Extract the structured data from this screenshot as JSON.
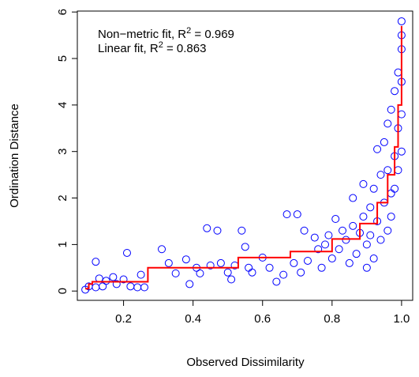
{
  "chart_data": {
    "type": "scatter",
    "x_label": "Observed Dissimilarity",
    "y_label": "Ordination Distance",
    "annotations": [
      [
        "Non−metric fit, R",
        "2",
        " = 0.969"
      ],
      [
        "Linear fit, R",
        "2",
        " = 0.863"
      ]
    ],
    "xlim": [
      0.067,
      1.032
    ],
    "ylim": [
      -0.2,
      6.02
    ],
    "xticks": [
      0.2,
      0.4,
      0.6,
      0.8,
      {
        "value": 1,
        "label": "1.0"
      }
    ],
    "yticks": [
      0,
      1,
      2,
      3,
      4,
      5,
      6
    ],
    "points": {
      "color": "#0000ff",
      "x": [
        0.09,
        0.1,
        0.12,
        0.12,
        0.13,
        0.14,
        0.15,
        0.17,
        0.18,
        0.2,
        0.21,
        0.22,
        0.24,
        0.26,
        0.25,
        0.31,
        0.33,
        0.35,
        0.38,
        0.39,
        0.41,
        0.42,
        0.44,
        0.45,
        0.47,
        0.48,
        0.5,
        0.51,
        0.52,
        0.54,
        0.55,
        0.56,
        0.57,
        0.6,
        0.62,
        0.64,
        0.66,
        0.67,
        0.69,
        0.7,
        0.71,
        0.72,
        0.73,
        0.75,
        0.76,
        0.77,
        0.78,
        0.79,
        0.8,
        0.81,
        0.82,
        0.83,
        0.84,
        0.85,
        0.86,
        0.86,
        0.87,
        0.88,
        0.89,
        0.89,
        0.9,
        0.9,
        0.91,
        0.91,
        0.92,
        0.92,
        0.93,
        0.93,
        0.94,
        0.94,
        0.95,
        0.95,
        0.96,
        0.96,
        0.96,
        0.97,
        0.97,
        0.97,
        0.98,
        0.98,
        0.98,
        0.99,
        0.99,
        0.99,
        1.0,
        1.0,
        1.0,
        1.0,
        1.0,
        1.0
      ],
      "y": [
        0.03,
        0.1,
        0.63,
        0.08,
        0.27,
        0.1,
        0.22,
        0.3,
        0.15,
        0.25,
        0.82,
        0.1,
        0.08,
        0.08,
        0.35,
        0.9,
        0.6,
        0.38,
        0.68,
        0.15,
        0.5,
        0.38,
        1.35,
        0.55,
        1.3,
        0.6,
        0.4,
        0.25,
        0.55,
        1.3,
        0.95,
        0.5,
        0.4,
        0.72,
        0.5,
        0.2,
        0.35,
        1.65,
        0.6,
        1.65,
        0.4,
        1.3,
        0.65,
        1.15,
        0.9,
        0.5,
        1.0,
        1.2,
        0.7,
        1.55,
        0.9,
        1.3,
        1.1,
        0.6,
        1.4,
        2.0,
        0.8,
        1.25,
        2.3,
        1.6,
        1.0,
        0.5,
        1.8,
        1.2,
        2.2,
        0.7,
        1.5,
        3.05,
        2.5,
        1.1,
        1.9,
        3.2,
        2.6,
        1.3,
        3.6,
        2.1,
        3.9,
        1.6,
        2.9,
        4.3,
        2.2,
        3.5,
        4.7,
        2.6,
        5.8,
        5.2,
        4.5,
        3.8,
        3.0,
        5.5
      ]
    },
    "fit": {
      "color": "#ff0000",
      "x": [
        0.09,
        0.1,
        0.1,
        0.11,
        0.11,
        0.27,
        0.27,
        0.53,
        0.53,
        0.68,
        0.68,
        0.8,
        0.8,
        0.88,
        0.88,
        0.93,
        0.93,
        0.96,
        0.96,
        0.98,
        0.98,
        0.99,
        0.99,
        1.0,
        1.0
      ],
      "y": [
        0.05,
        0.05,
        0.15,
        0.15,
        0.2,
        0.2,
        0.5,
        0.5,
        0.72,
        0.72,
        0.85,
        0.85,
        1.12,
        1.12,
        1.45,
        1.45,
        1.9,
        1.9,
        2.5,
        2.5,
        3.1,
        3.1,
        4.0,
        4.0,
        5.7
      ]
    }
  }
}
